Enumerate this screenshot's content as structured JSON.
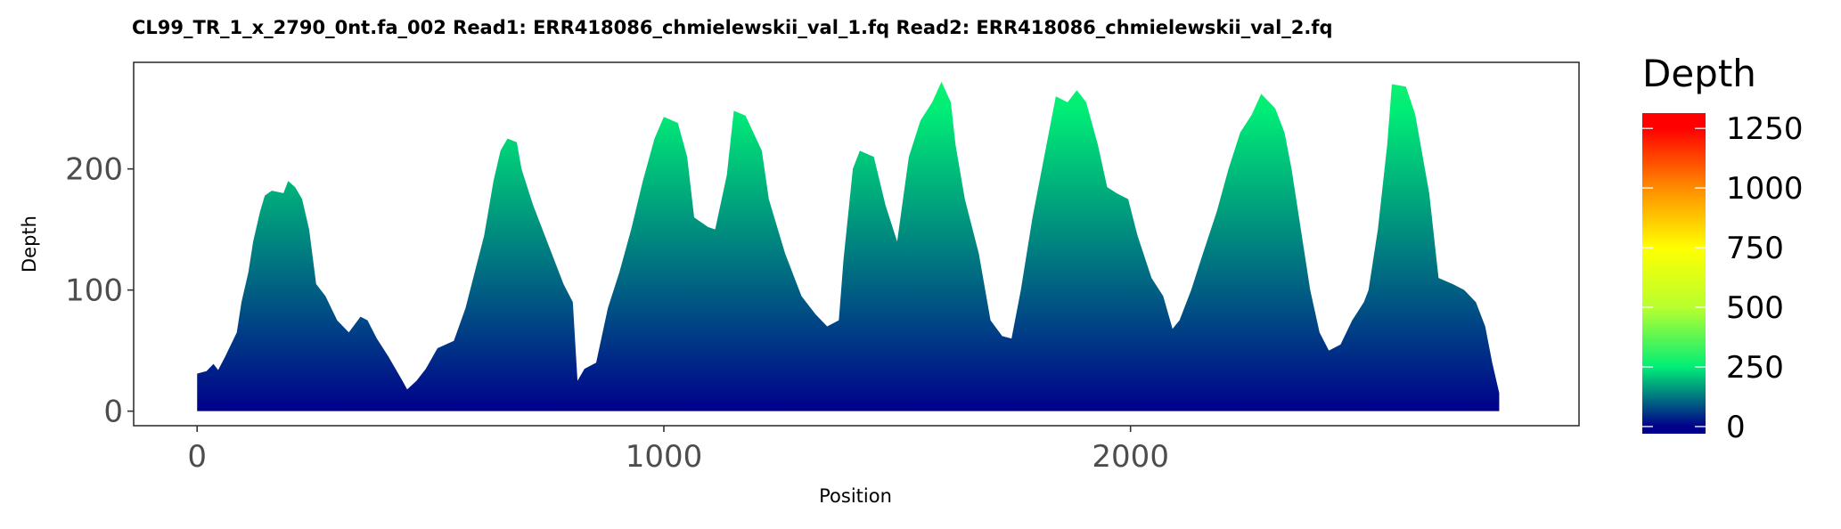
{
  "chart_data": {
    "type": "area",
    "title": "CL99_TR_1_x_2790_0nt.fa_002   Read1: ERR418086_chmielewskii_val_1.fq   Read2: ERR418086_chmielewskii_val_2.fq",
    "x_label": "Position",
    "y_label": "Depth",
    "x": [
      0,
      20,
      35,
      45,
      60,
      85,
      95,
      110,
      120,
      135,
      145,
      160,
      185,
      195,
      210,
      225,
      240,
      255,
      275,
      300,
      325,
      350,
      365,
      385,
      410,
      440,
      450,
      470,
      490,
      515,
      550,
      575,
      595,
      615,
      635,
      650,
      665,
      685,
      695,
      720,
      755,
      785,
      805,
      815,
      830,
      855,
      880,
      905,
      930,
      955,
      980,
      1000,
      1030,
      1050,
      1065,
      1095,
      1110,
      1135,
      1150,
      1175,
      1210,
      1225,
      1260,
      1295,
      1325,
      1350,
      1375,
      1385,
      1405,
      1420,
      1450,
      1475,
      1500,
      1525,
      1550,
      1575,
      1595,
      1615,
      1625,
      1645,
      1675,
      1700,
      1725,
      1745,
      1765,
      1790,
      1815,
      1840,
      1865,
      1885,
      1905,
      1930,
      1950,
      1970,
      1995,
      2015,
      2045,
      2070,
      2090,
      2105,
      2130,
      2155,
      2185,
      2210,
      2235,
      2260,
      2280,
      2310,
      2330,
      2345,
      2365,
      2385,
      2405,
      2425,
      2450,
      2475,
      2500,
      2510,
      2530,
      2550,
      2560,
      2590,
      2610,
      2640,
      2660,
      2690,
      2715,
      2740,
      2760,
      2775,
      2790
    ],
    "values": [
      31,
      33,
      39,
      34,
      45,
      65,
      90,
      115,
      140,
      165,
      178,
      182,
      180,
      190,
      185,
      175,
      150,
      105,
      95,
      75,
      65,
      78,
      75,
      60,
      45,
      25,
      18,
      25,
      35,
      52,
      58,
      85,
      115,
      145,
      190,
      215,
      225,
      222,
      200,
      170,
      135,
      105,
      90,
      25,
      35,
      40,
      85,
      115,
      150,
      190,
      225,
      243,
      238,
      210,
      160,
      152,
      150,
      195,
      248,
      244,
      215,
      175,
      130,
      95,
      80,
      70,
      75,
      125,
      200,
      215,
      210,
      170,
      140,
      210,
      240,
      255,
      272,
      255,
      220,
      175,
      130,
      75,
      62,
      60,
      100,
      160,
      210,
      260,
      255,
      265,
      255,
      220,
      185,
      180,
      175,
      145,
      110,
      95,
      68,
      75,
      100,
      130,
      165,
      200,
      230,
      245,
      262,
      250,
      230,
      200,
      150,
      100,
      65,
      50,
      55,
      75,
      90,
      100,
      150,
      220,
      270,
      268,
      245,
      180,
      110,
      105,
      100,
      90,
      70,
      40,
      15
    ],
    "xlim": [
      -136,
      2961
    ],
    "ylim": [
      -12,
      288
    ],
    "xticks": [
      0,
      1000,
      2000
    ],
    "yticks": [
      0,
      100,
      200
    ],
    "colorbar": {
      "title": "Depth",
      "lim": [
        -30,
        1314
      ],
      "ticks": [
        0,
        250,
        500,
        750,
        1000,
        1250
      ],
      "colors": [
        {
          "value": 0,
          "color": "#00008b"
        },
        {
          "value": 250,
          "color": "#00ee76"
        },
        {
          "value": 500,
          "color": "#b8ff2e"
        },
        {
          "value": 750,
          "color": "#ffff00"
        },
        {
          "value": 1000,
          "color": "#ff8c00"
        },
        {
          "value": 1250,
          "color": "#ff0000"
        }
      ]
    }
  }
}
